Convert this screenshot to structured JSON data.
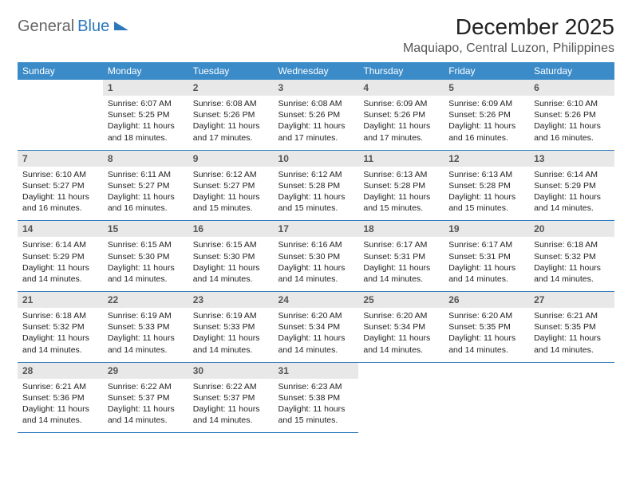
{
  "logo": {
    "gray": "General",
    "blue": "Blue"
  },
  "title": "December 2025",
  "location": "Maquiapo, Central Luzon, Philippines",
  "colors": {
    "header_bg": "#3b8bc8",
    "header_text": "#ffffff",
    "daynum_bg": "#e8e8e8",
    "daynum_text": "#555555",
    "rule": "#2d78bd",
    "text": "#222222",
    "logo_gray": "#666666",
    "logo_blue": "#2d78bd"
  },
  "fonts": {
    "title_size_pt": 21,
    "location_size_pt": 12,
    "dayhead_size_pt": 9,
    "daynum_size_pt": 9,
    "body_size_pt": 8
  },
  "day_names": [
    "Sunday",
    "Monday",
    "Tuesday",
    "Wednesday",
    "Thursday",
    "Friday",
    "Saturday"
  ],
  "weeks": [
    [
      null,
      {
        "n": "1",
        "sr": "Sunrise: 6:07 AM",
        "ss": "Sunset: 5:25 PM",
        "dl1": "Daylight: 11 hours",
        "dl2": "and 18 minutes."
      },
      {
        "n": "2",
        "sr": "Sunrise: 6:08 AM",
        "ss": "Sunset: 5:26 PM",
        "dl1": "Daylight: 11 hours",
        "dl2": "and 17 minutes."
      },
      {
        "n": "3",
        "sr": "Sunrise: 6:08 AM",
        "ss": "Sunset: 5:26 PM",
        "dl1": "Daylight: 11 hours",
        "dl2": "and 17 minutes."
      },
      {
        "n": "4",
        "sr": "Sunrise: 6:09 AM",
        "ss": "Sunset: 5:26 PM",
        "dl1": "Daylight: 11 hours",
        "dl2": "and 17 minutes."
      },
      {
        "n": "5",
        "sr": "Sunrise: 6:09 AM",
        "ss": "Sunset: 5:26 PM",
        "dl1": "Daylight: 11 hours",
        "dl2": "and 16 minutes."
      },
      {
        "n": "6",
        "sr": "Sunrise: 6:10 AM",
        "ss": "Sunset: 5:26 PM",
        "dl1": "Daylight: 11 hours",
        "dl2": "and 16 minutes."
      }
    ],
    [
      {
        "n": "7",
        "sr": "Sunrise: 6:10 AM",
        "ss": "Sunset: 5:27 PM",
        "dl1": "Daylight: 11 hours",
        "dl2": "and 16 minutes."
      },
      {
        "n": "8",
        "sr": "Sunrise: 6:11 AM",
        "ss": "Sunset: 5:27 PM",
        "dl1": "Daylight: 11 hours",
        "dl2": "and 16 minutes."
      },
      {
        "n": "9",
        "sr": "Sunrise: 6:12 AM",
        "ss": "Sunset: 5:27 PM",
        "dl1": "Daylight: 11 hours",
        "dl2": "and 15 minutes."
      },
      {
        "n": "10",
        "sr": "Sunrise: 6:12 AM",
        "ss": "Sunset: 5:28 PM",
        "dl1": "Daylight: 11 hours",
        "dl2": "and 15 minutes."
      },
      {
        "n": "11",
        "sr": "Sunrise: 6:13 AM",
        "ss": "Sunset: 5:28 PM",
        "dl1": "Daylight: 11 hours",
        "dl2": "and 15 minutes."
      },
      {
        "n": "12",
        "sr": "Sunrise: 6:13 AM",
        "ss": "Sunset: 5:28 PM",
        "dl1": "Daylight: 11 hours",
        "dl2": "and 15 minutes."
      },
      {
        "n": "13",
        "sr": "Sunrise: 6:14 AM",
        "ss": "Sunset: 5:29 PM",
        "dl1": "Daylight: 11 hours",
        "dl2": "and 14 minutes."
      }
    ],
    [
      {
        "n": "14",
        "sr": "Sunrise: 6:14 AM",
        "ss": "Sunset: 5:29 PM",
        "dl1": "Daylight: 11 hours",
        "dl2": "and 14 minutes."
      },
      {
        "n": "15",
        "sr": "Sunrise: 6:15 AM",
        "ss": "Sunset: 5:30 PM",
        "dl1": "Daylight: 11 hours",
        "dl2": "and 14 minutes."
      },
      {
        "n": "16",
        "sr": "Sunrise: 6:15 AM",
        "ss": "Sunset: 5:30 PM",
        "dl1": "Daylight: 11 hours",
        "dl2": "and 14 minutes."
      },
      {
        "n": "17",
        "sr": "Sunrise: 6:16 AM",
        "ss": "Sunset: 5:30 PM",
        "dl1": "Daylight: 11 hours",
        "dl2": "and 14 minutes."
      },
      {
        "n": "18",
        "sr": "Sunrise: 6:17 AM",
        "ss": "Sunset: 5:31 PM",
        "dl1": "Daylight: 11 hours",
        "dl2": "and 14 minutes."
      },
      {
        "n": "19",
        "sr": "Sunrise: 6:17 AM",
        "ss": "Sunset: 5:31 PM",
        "dl1": "Daylight: 11 hours",
        "dl2": "and 14 minutes."
      },
      {
        "n": "20",
        "sr": "Sunrise: 6:18 AM",
        "ss": "Sunset: 5:32 PM",
        "dl1": "Daylight: 11 hours",
        "dl2": "and 14 minutes."
      }
    ],
    [
      {
        "n": "21",
        "sr": "Sunrise: 6:18 AM",
        "ss": "Sunset: 5:32 PM",
        "dl1": "Daylight: 11 hours",
        "dl2": "and 14 minutes."
      },
      {
        "n": "22",
        "sr": "Sunrise: 6:19 AM",
        "ss": "Sunset: 5:33 PM",
        "dl1": "Daylight: 11 hours",
        "dl2": "and 14 minutes."
      },
      {
        "n": "23",
        "sr": "Sunrise: 6:19 AM",
        "ss": "Sunset: 5:33 PM",
        "dl1": "Daylight: 11 hours",
        "dl2": "and 14 minutes."
      },
      {
        "n": "24",
        "sr": "Sunrise: 6:20 AM",
        "ss": "Sunset: 5:34 PM",
        "dl1": "Daylight: 11 hours",
        "dl2": "and 14 minutes."
      },
      {
        "n": "25",
        "sr": "Sunrise: 6:20 AM",
        "ss": "Sunset: 5:34 PM",
        "dl1": "Daylight: 11 hours",
        "dl2": "and 14 minutes."
      },
      {
        "n": "26",
        "sr": "Sunrise: 6:20 AM",
        "ss": "Sunset: 5:35 PM",
        "dl1": "Daylight: 11 hours",
        "dl2": "and 14 minutes."
      },
      {
        "n": "27",
        "sr": "Sunrise: 6:21 AM",
        "ss": "Sunset: 5:35 PM",
        "dl1": "Daylight: 11 hours",
        "dl2": "and 14 minutes."
      }
    ],
    [
      {
        "n": "28",
        "sr": "Sunrise: 6:21 AM",
        "ss": "Sunset: 5:36 PM",
        "dl1": "Daylight: 11 hours",
        "dl2": "and 14 minutes."
      },
      {
        "n": "29",
        "sr": "Sunrise: 6:22 AM",
        "ss": "Sunset: 5:37 PM",
        "dl1": "Daylight: 11 hours",
        "dl2": "and 14 minutes."
      },
      {
        "n": "30",
        "sr": "Sunrise: 6:22 AM",
        "ss": "Sunset: 5:37 PM",
        "dl1": "Daylight: 11 hours",
        "dl2": "and 14 minutes."
      },
      {
        "n": "31",
        "sr": "Sunrise: 6:23 AM",
        "ss": "Sunset: 5:38 PM",
        "dl1": "Daylight: 11 hours",
        "dl2": "and 15 minutes."
      },
      null,
      null,
      null
    ]
  ]
}
